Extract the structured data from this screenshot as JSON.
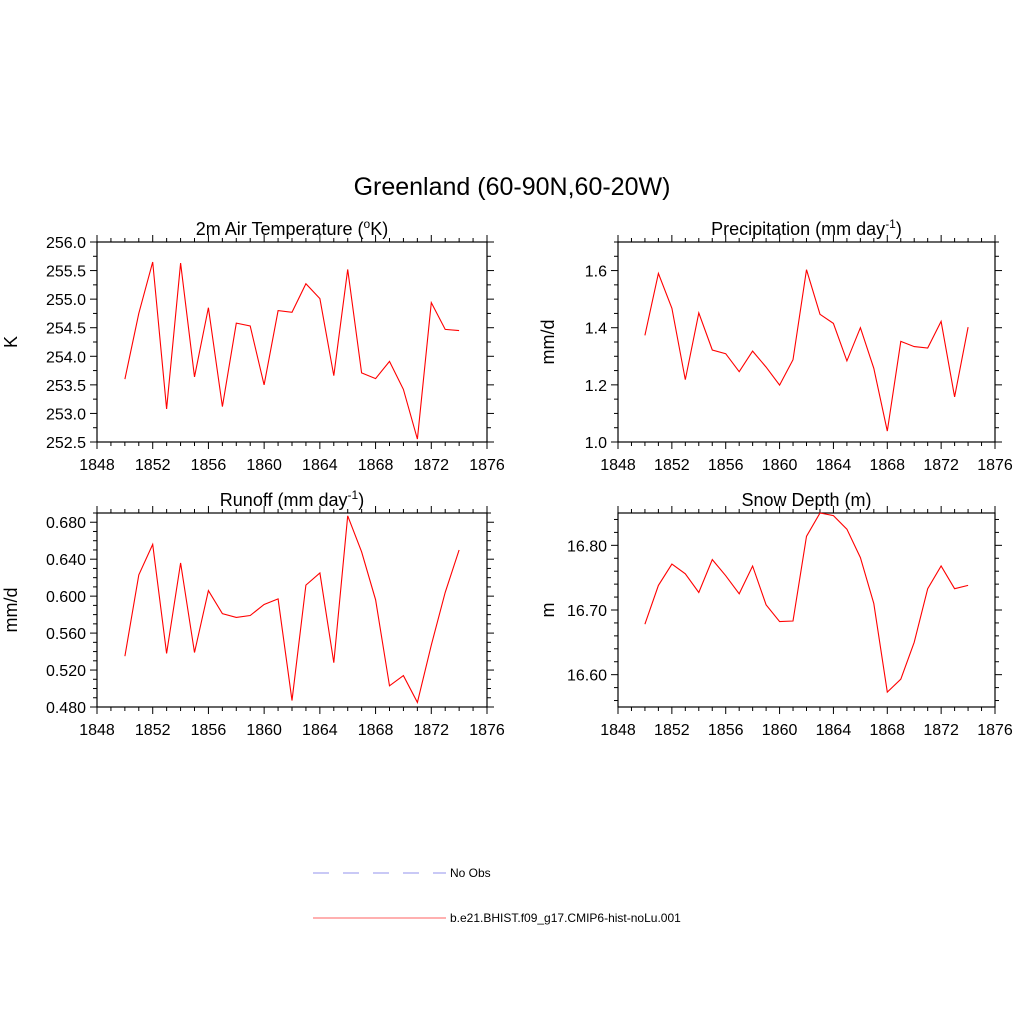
{
  "figure": {
    "title": "Greenland (60-90N,60-20W)"
  },
  "chart_data": [
    {
      "type": "line",
      "title": "2m Air Temperature (°K)",
      "title_main": "2m Air Temperature (",
      "title_sup": "o",
      "title_tail": "K)",
      "xlabel": "",
      "ylabel": "K",
      "xlim": [
        1848,
        1876
      ],
      "ylim": [
        252.5,
        256.0
      ],
      "xticks": [
        1848,
        1852,
        1856,
        1860,
        1864,
        1868,
        1872,
        1876
      ],
      "yticks": [
        "252.5",
        "253.0",
        "253.5",
        "254.0",
        "254.5",
        "255.0",
        "255.5",
        "256.0"
      ],
      "x": [
        1850,
        1851,
        1852,
        1853,
        1854,
        1855,
        1856,
        1857,
        1858,
        1859,
        1860,
        1861,
        1862,
        1863,
        1864,
        1865,
        1866,
        1867,
        1868,
        1869,
        1870,
        1871,
        1872,
        1873,
        1874
      ],
      "series": [
        {
          "name": "b.e21.BHIST.f09_g17.CMIP6-hist-noLu.001",
          "values": [
            253.6,
            254.75,
            255.65,
            253.08,
            255.63,
            253.64,
            254.85,
            253.12,
            254.58,
            254.53,
            253.5,
            254.8,
            254.77,
            255.27,
            255.01,
            253.66,
            255.52,
            253.71,
            253.61,
            253.91,
            253.42,
            252.55,
            254.94,
            254.47,
            254.45
          ]
        }
      ]
    },
    {
      "type": "line",
      "title": "Precipitation (mm day-1)",
      "title_main": "Precipitation (mm day",
      "title_sup": "-1",
      "title_tail": ")",
      "xlabel": "",
      "ylabel": "mm/d",
      "xlim": [
        1848,
        1876
      ],
      "ylim": [
        1.0,
        1.7
      ],
      "xticks": [
        1848,
        1852,
        1856,
        1860,
        1864,
        1868,
        1872,
        1876
      ],
      "yticks": [
        "1.0",
        "1.2",
        "1.4",
        "1.6"
      ],
      "x": [
        1850,
        1851,
        1852,
        1853,
        1854,
        1855,
        1856,
        1857,
        1858,
        1859,
        1860,
        1861,
        1862,
        1863,
        1864,
        1865,
        1866,
        1867,
        1868,
        1869,
        1870,
        1871,
        1872,
        1873,
        1874
      ],
      "series": [
        {
          "name": "b.e21.BHIST.f09_g17.CMIP6-hist-noLu.001",
          "values": [
            1.373,
            1.59,
            1.468,
            1.218,
            1.452,
            1.322,
            1.309,
            1.246,
            1.318,
            1.262,
            1.199,
            1.288,
            1.603,
            1.447,
            1.415,
            1.284,
            1.4,
            1.258,
            1.038,
            1.352,
            1.334,
            1.329,
            1.422,
            1.158,
            1.402
          ]
        }
      ]
    },
    {
      "type": "line",
      "title": "Runoff (mm day-1)",
      "title_main": "Runoff (mm day",
      "title_sup": "-1",
      "title_tail": ")",
      "xlabel": "",
      "ylabel": "mm/d",
      "xlim": [
        1848,
        1876
      ],
      "ylim": [
        0.48,
        0.69
      ],
      "xticks": [
        1848,
        1852,
        1856,
        1860,
        1864,
        1868,
        1872,
        1876
      ],
      "yticks": [
        "0.480",
        "0.520",
        "0.560",
        "0.600",
        "0.640",
        "0.680"
      ],
      "x": [
        1850,
        1851,
        1852,
        1853,
        1854,
        1855,
        1856,
        1857,
        1858,
        1859,
        1860,
        1861,
        1862,
        1863,
        1864,
        1865,
        1866,
        1867,
        1868,
        1869,
        1870,
        1871,
        1872,
        1873,
        1874
      ],
      "series": [
        {
          "name": "b.e21.BHIST.f09_g17.CMIP6-hist-noLu.001",
          "values": [
            0.535,
            0.623,
            0.656,
            0.538,
            0.636,
            0.539,
            0.606,
            0.581,
            0.577,
            0.579,
            0.591,
            0.597,
            0.487,
            0.612,
            0.625,
            0.528,
            0.687,
            0.648,
            0.596,
            0.503,
            0.514,
            0.485,
            0.547,
            0.604,
            0.65
          ]
        }
      ]
    },
    {
      "type": "line",
      "title": "Snow Depth (m)",
      "title_main": "Snow Depth (m)",
      "title_sup": "",
      "title_tail": "",
      "xlabel": "",
      "ylabel": "m",
      "xlim": [
        1848,
        1876
      ],
      "ylim": [
        16.55,
        16.85
      ],
      "xticks": [
        1848,
        1852,
        1856,
        1860,
        1864,
        1868,
        1872,
        1876
      ],
      "yticks": [
        "16.60",
        "16.70",
        "16.80"
      ],
      "x": [
        1850,
        1851,
        1852,
        1853,
        1854,
        1855,
        1856,
        1857,
        1858,
        1859,
        1860,
        1861,
        1862,
        1863,
        1864,
        1865,
        1866,
        1867,
        1868,
        1869,
        1870,
        1871,
        1872,
        1873,
        1874
      ],
      "series": [
        {
          "name": "b.e21.BHIST.f09_g17.CMIP6-hist-noLu.001",
          "values": [
            16.678,
            16.738,
            16.771,
            16.756,
            16.727,
            16.778,
            16.753,
            16.725,
            16.768,
            16.708,
            16.682,
            16.683,
            16.814,
            16.85,
            16.846,
            16.825,
            16.781,
            16.71,
            16.573,
            16.593,
            16.65,
            16.733,
            16.768,
            16.733,
            16.738
          ]
        }
      ]
    }
  ],
  "legend": {
    "items": [
      {
        "label": "No Obs",
        "color": "#a9a9f0",
        "style": "dashed"
      },
      {
        "label": "b.e21.BHIST.f09_g17.CMIP6-hist-noLu.001",
        "color": "#ff8080",
        "style": "solid"
      }
    ]
  },
  "colors": {
    "series": "#ff0000",
    "axes": "#000000"
  }
}
